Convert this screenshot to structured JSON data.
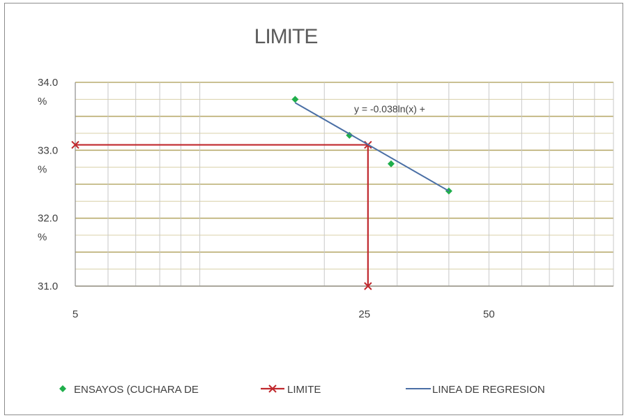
{
  "chart_data": {
    "type": "scatter",
    "title": "LIMITE",
    "xscale": "log",
    "xlim": [
      5,
      100
    ],
    "ylim": [
      31.0,
      34.0
    ],
    "xticks": [
      {
        "value": 5,
        "label": "5"
      },
      {
        "value": 25,
        "label": "25"
      },
      {
        "value": 50,
        "label": "50"
      }
    ],
    "yticks": [
      {
        "value": 34.0,
        "label": "34.0",
        "unit": "%"
      },
      {
        "value": 33.0,
        "label": "33.0",
        "unit": "%"
      },
      {
        "value": 32.0,
        "label": "32.0",
        "unit": "%"
      },
      {
        "value": 31.0,
        "label": "31.0",
        "unit": ""
      }
    ],
    "grid": true,
    "series": [
      {
        "name": "ENSAYOS (CUCHARA DE",
        "kind": "points",
        "marker": "diamond",
        "color": "#1fae4b",
        "x": [
          17,
          23,
          29,
          40
        ],
        "y": [
          33.75,
          33.22,
          32.8,
          32.4
        ]
      },
      {
        "name": "LIMITE",
        "kind": "line",
        "marker": "x",
        "color": "#c0282d",
        "x": [
          5,
          25.5,
          25.5
        ],
        "y": [
          33.08,
          33.08,
          31.0
        ]
      },
      {
        "name": "LINEA DE REGRESION",
        "kind": "line",
        "marker": "none",
        "color": "#4a6fa5",
        "x": [
          17,
          40
        ],
        "y": [
          33.7,
          32.4
        ]
      }
    ],
    "annotation": "y = -0.038ln(x) +",
    "legend_position": "bottom"
  }
}
